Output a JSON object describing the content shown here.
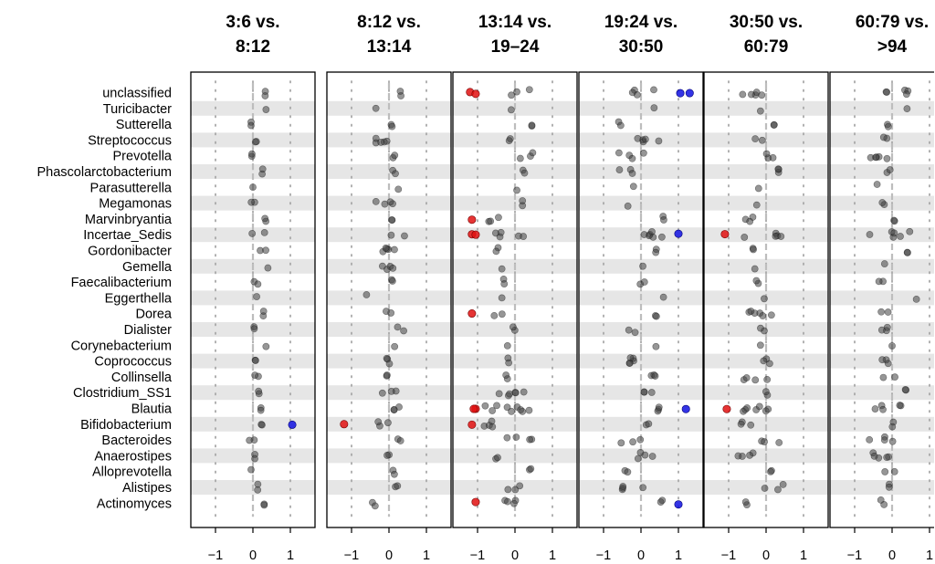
{
  "chart_data": {
    "type": "scatter",
    "genera": [
      "unclassified",
      "Turicibacter",
      "Sutterella",
      "Streptococcus",
      "Prevotella",
      "Phascolarctobacterium",
      "Parasutterella",
      "Megamonas",
      "Marvinbryantia",
      "Incertae_Sedis",
      "Gordonibacter",
      "Gemella",
      "Faecalibacterium",
      "Eggerthella",
      "Dorea",
      "Dialister",
      "Corynebacterium",
      "Coprococcus",
      "Collinsella",
      "Clostridium_SS1",
      "Blautia",
      "Bifidobacterium",
      "Bacteroides",
      "Anaerostipes",
      "Alloprevotella",
      "Alistipes",
      "Actinomyces"
    ],
    "xlim": [
      -1.5,
      1.5
    ],
    "xticks": [
      -1,
      0,
      1
    ],
    "xtick_labels": [
      "−1",
      "0",
      "1"
    ],
    "grid": "dotted vertical lines at -1, 0, 1; alternating grey row bands",
    "colors": {
      "neutral": "#404040",
      "negative": "#e01010",
      "positive": "#1010e0",
      "band": "#e6e6e6",
      "zero_line": "#bdbdbd"
    },
    "panels": [
      {
        "title_line1": "3:6 vs.",
        "title_line2": "8:12",
        "points": {
          "unclassified": [
            0.2,
            0.4,
            0.07
          ],
          "Turicibacter": [
            0.35,
            0.35,
            0
          ],
          "Sutterella": [
            -0.05,
            -0.05,
            0.05
          ],
          "Streptococcus": [
            0.05,
            0.1,
            0.05
          ],
          "Prevotella": [
            -0.05,
            0.05,
            0.08
          ],
          "Phascolarctobacterium": [
            0.05,
            0.3,
            0.1
          ],
          "Parasutterella": [
            0.0,
            0.0,
            0
          ],
          "Megamonas": [
            -0.1,
            0.1,
            0.1
          ],
          "Marvinbryantia": [
            0.3,
            0.35,
            0.05
          ],
          "Incertae_Sedis": [
            -0.1,
            0.4,
            0.07
          ],
          "Gordonibacter": [
            0.1,
            0.35,
            0.1
          ],
          "Gemella": [
            0.4,
            0.4,
            0
          ],
          "Faecalibacterium": [
            0.0,
            0.15,
            0.1
          ],
          "Eggerthella": [
            0.1,
            0.1,
            0
          ],
          "Dorea": [
            0.25,
            0.3,
            0.08
          ],
          "Dialister": [
            0.0,
            0.05,
            0.05
          ],
          "Corynebacterium": [
            0.35,
            0.35,
            0
          ],
          "Coprococcus": [
            0.05,
            0.1,
            0.1
          ],
          "Collinsella": [
            0.05,
            0.15,
            0.08
          ],
          "Clostridium_SS1": [
            0.15,
            0.25,
            0.1
          ],
          "Blautia": [
            0.2,
            0.25,
            0.1
          ],
          "Bifidobacterium": [
            0.2,
            0.25,
            0.12
          ],
          "Bacteroides": [
            -0.1,
            0.2,
            0.08
          ],
          "Anaerostipes": [
            0.05,
            0.05,
            0.05
          ],
          "Alloprevotella": [
            -0.05,
            -0.05,
            0
          ],
          "Alistipes": [
            0.1,
            0.15,
            0.07
          ],
          "Actinomyces": [
            0.3,
            0.3,
            0.05
          ]
        },
        "red": {},
        "blue": {
          "Bifidobacterium": [
            1.05
          ]
        }
      },
      {
        "title_line1": "8:12 vs.",
        "title_line2": "13:14",
        "points": {
          "unclassified": [
            0.2,
            0.35,
            0.08
          ],
          "Turicibacter": [
            -0.35,
            -0.35,
            0
          ],
          "Sutterella": [
            0.05,
            0.1,
            0.05
          ],
          "Streptococcus": [
            -0.4,
            0.2,
            0.12
          ],
          "Prevotella": [
            0.05,
            0.3,
            0.08
          ],
          "Phascolarctobacterium": [
            0.1,
            0.2,
            0.06
          ],
          "Parasutterella": [
            0.25,
            0.25,
            0
          ],
          "Megamonas": [
            -0.35,
            0.1,
            0.12
          ],
          "Marvinbryantia": [
            0.05,
            0.1,
            0.05
          ],
          "Incertae_Sedis": [
            0.0,
            0.45,
            0.07
          ],
          "Gordonibacter": [
            -0.3,
            0.35,
            0.12
          ],
          "Gemella": [
            -0.35,
            0.2,
            0.1
          ],
          "Faecalibacterium": [
            0.05,
            0.1,
            0.08
          ],
          "Eggerthella": [
            -0.6,
            -0.6,
            0
          ],
          "Dorea": [
            -0.1,
            0.15,
            0.08
          ],
          "Dialister": [
            0.2,
            0.45,
            0.1
          ],
          "Corynebacterium": [
            0.15,
            0.15,
            0
          ],
          "Coprococcus": [
            -0.2,
            0.25,
            0.1
          ],
          "Collinsella": [
            -0.15,
            -0.05,
            0.05
          ],
          "Clostridium_SS1": [
            -0.3,
            0.2,
            0.1
          ],
          "Blautia": [
            -0.1,
            0.35,
            0.1
          ],
          "Bifidobacterium": [
            -0.3,
            0.1,
            0.1
          ],
          "Bacteroides": [
            0.1,
            0.4,
            0.07
          ],
          "Anaerostipes": [
            -0.2,
            0.15,
            0.1
          ],
          "Alloprevotella": [
            0.05,
            0.15,
            0.06
          ],
          "Alistipes": [
            0.05,
            0.25,
            0.07
          ],
          "Actinomyces": [
            -0.45,
            -0.25,
            0.1
          ]
        },
        "red": {
          "Bifidobacterium": [
            -1.2
          ]
        },
        "blue": {}
      },
      {
        "title_line1": "13:14 vs.",
        "title_line2": "19–24",
        "points": {
          "unclassified": [
            -0.2,
            0.4,
            0.08
          ],
          "Turicibacter": [
            -0.1,
            -0.1,
            0
          ],
          "Sutterella": [
            0.45,
            0.45,
            0.05
          ],
          "Streptococcus": [
            -0.35,
            -0.1,
            0.1
          ],
          "Prevotella": [
            0.1,
            0.6,
            0.08
          ],
          "Phascolarctobacterium": [
            0.05,
            0.3,
            0.1
          ],
          "Parasutterella": [
            0.05,
            0.05,
            0
          ],
          "Megamonas": [
            0.2,
            0.2,
            0.05
          ],
          "Marvinbryantia": [
            -0.8,
            -0.35,
            0.1
          ],
          "Incertae_Sedis": [
            -0.6,
            0.4,
            0.08
          ],
          "Gordonibacter": [
            -0.6,
            -0.3,
            0.1
          ],
          "Gemella": [
            -0.35,
            -0.35,
            0
          ],
          "Faecalibacterium": [
            -0.35,
            -0.1,
            0.06
          ],
          "Eggerthella": [
            -0.35,
            -0.35,
            0
          ],
          "Dorea": [
            -0.6,
            -0.2,
            0.08
          ],
          "Dialister": [
            -0.1,
            0.05,
            0.05
          ],
          "Corynebacterium": [
            -0.2,
            -0.2,
            0
          ],
          "Coprococcus": [
            -0.25,
            -0.1,
            0.08
          ],
          "Collinsella": [
            -0.4,
            -0.2,
            0.1
          ],
          "Clostridium_SS1": [
            -0.6,
            0.3,
            0.1
          ],
          "Blautia": [
            -0.8,
            0.4,
            0.12
          ],
          "Bifidobacterium": [
            -0.9,
            -0.3,
            0.1
          ],
          "Bacteroides": [
            -0.3,
            0.45,
            0.08
          ],
          "Anaerostipes": [
            -0.7,
            -0.4,
            0.08
          ],
          "Alloprevotella": [
            0.35,
            0.45,
            0.05
          ],
          "Alistipes": [
            -0.2,
            0.3,
            0.08
          ],
          "Actinomyces": [
            -0.35,
            0.2,
            0.1
          ]
        },
        "red": {
          "unclassified": [
            -1.2,
            -1.05
          ],
          "Marvinbryantia": [
            -1.15
          ],
          "Incertae_Sedis": [
            -1.15,
            -1.05
          ],
          "Dorea": [
            -1.15
          ],
          "Blautia": [
            -1.05,
            -1.1
          ],
          "Bifidobacterium": [
            -1.15
          ],
          "Actinomyces": [
            -1.05
          ]
        },
        "blue": {}
      },
      {
        "title_line1": "19:24 vs.",
        "title_line2": "30:50",
        "points": {
          "unclassified": [
            -0.3,
            0.4,
            0.08
          ],
          "Turicibacter": [
            0.35,
            0.35,
            0
          ],
          "Sutterella": [
            -0.6,
            -0.3,
            0.1
          ],
          "Streptococcus": [
            -0.1,
            0.6,
            0.1
          ],
          "Prevotella": [
            -0.65,
            0.15,
            0.08
          ],
          "Phascolarctobacterium": [
            -0.6,
            -0.2,
            0.1
          ],
          "Parasutterella": [
            -0.2,
            -0.2,
            0
          ],
          "Megamonas": [
            -0.35,
            -0.35,
            0
          ],
          "Marvinbryantia": [
            0.5,
            0.8,
            0.06
          ],
          "Incertae_Sedis": [
            -0.35,
            0.85,
            0.08
          ],
          "Gordonibacter": [
            0.3,
            0.5,
            0.1
          ],
          "Gemella": [
            0.05,
            0.05,
            0
          ],
          "Faecalibacterium": [
            -0.1,
            0.1,
            0.06
          ],
          "Eggerthella": [
            0.6,
            0.6,
            0
          ],
          "Dorea": [
            0.3,
            0.5,
            0.06
          ],
          "Dialister": [
            -0.35,
            -0.15,
            0.06
          ],
          "Corynebacterium": [
            0.4,
            0.4,
            0
          ],
          "Coprococcus": [
            -0.4,
            0.3,
            0.1
          ],
          "Collinsella": [
            -0.1,
            0.4,
            0.1
          ],
          "Clostridium_SS1": [
            0.0,
            0.4,
            0.1
          ],
          "Blautia": [
            0.1,
            0.6,
            0.08
          ],
          "Bifidobacterium": [
            0.1,
            0.5,
            0.08
          ],
          "Bacteroides": [
            -0.55,
            0.1,
            0.07
          ],
          "Anaerostipes": [
            -0.1,
            0.45,
            0.1
          ],
          "Alloprevotella": [
            -0.45,
            -0.25,
            0.06
          ],
          "Alistipes": [
            -0.5,
            0.2,
            0.08
          ],
          "Actinomyces": [
            0.5,
            0.7,
            0.06
          ]
        },
        "red": {},
        "blue": {
          "unclassified": [
            1.05,
            1.3
          ],
          "Incertae_Sedis": [
            1.0
          ],
          "Blautia": [
            1.2
          ],
          "Actinomyces": [
            1.0
          ]
        }
      },
      {
        "title_line1": "30:50 vs.",
        "title_line2": "60:79",
        "points": {
          "unclassified": [
            -0.7,
            0.3,
            0.08
          ],
          "Turicibacter": [
            -0.15,
            -0.15,
            0
          ],
          "Sutterella": [
            0.2,
            0.25,
            0.05
          ],
          "Streptococcus": [
            -0.3,
            0.1,
            0.08
          ],
          "Prevotella": [
            -0.1,
            0.4,
            0.08
          ],
          "Phascolarctobacterium": [
            0.0,
            0.4,
            0.1
          ],
          "Parasutterella": [
            -0.2,
            -0.2,
            0
          ],
          "Megamonas": [
            -0.25,
            -0.25,
            0
          ],
          "Marvinbryantia": [
            -0.6,
            -0.2,
            0.1
          ],
          "Incertae_Sedis": [
            -0.6,
            0.4,
            0.08
          ],
          "Gordonibacter": [
            -0.4,
            -0.1,
            0.08
          ],
          "Gemella": [
            -0.3,
            -0.3,
            0
          ],
          "Faecalibacterium": [
            -0.35,
            0.05,
            0.08
          ],
          "Eggerthella": [
            -0.05,
            -0.05,
            0
          ],
          "Dorea": [
            -0.7,
            0.2,
            0.1
          ],
          "Dialister": [
            -0.15,
            0.05,
            0.06
          ],
          "Corynebacterium": [
            -0.15,
            -0.15,
            0
          ],
          "Coprococcus": [
            -0.4,
            0.1,
            0.1
          ],
          "Collinsella": [
            -0.6,
            0.05,
            0.1
          ],
          "Clostridium_SS1": [
            -0.2,
            0.1,
            0.08
          ],
          "Blautia": [
            -0.9,
            0.1,
            0.1
          ],
          "Bifidobacterium": [
            -0.9,
            -0.4,
            0.08
          ],
          "Bacteroides": [
            -0.2,
            0.4,
            0.08
          ],
          "Anaerostipes": [
            -0.8,
            -0.2,
            0.1
          ],
          "Alloprevotella": [
            0.1,
            0.2,
            0.05
          ],
          "Alistipes": [
            -0.1,
            0.5,
            0.08
          ],
          "Actinomyces": [
            -0.7,
            -0.5,
            0.08
          ]
        },
        "red": {
          "Incertae_Sedis": [
            -1.1
          ],
          "Blautia": [
            -1.05
          ]
        },
        "blue": {}
      },
      {
        "title_line1": "60:79 vs.",
        "title_line2": ">94",
        "points": {
          "unclassified": [
            -0.5,
            0.5,
            0.08
          ],
          "Turicibacter": [
            0.4,
            0.4,
            0
          ],
          "Sutterella": [
            -0.2,
            -0.1,
            0.05
          ],
          "Streptococcus": [
            -0.25,
            0.05,
            0.08
          ],
          "Prevotella": [
            -0.7,
            0.25,
            0.08
          ],
          "Phascolarctobacterium": [
            -0.2,
            0.1,
            0.08
          ],
          "Parasutterella": [
            -0.4,
            -0.4,
            0
          ],
          "Megamonas": [
            -0.5,
            -0.2,
            0.08
          ],
          "Marvinbryantia": [
            -0.3,
            0.1,
            0.08
          ],
          "Incertae_Sedis": [
            -0.6,
            0.6,
            0.08
          ],
          "Gordonibacter": [
            0.4,
            0.45,
            0.05
          ],
          "Gemella": [
            -0.2,
            -0.2,
            0
          ],
          "Faecalibacterium": [
            -0.4,
            -0.1,
            0.08
          ],
          "Eggerthella": [
            0.65,
            0.65,
            0
          ],
          "Dorea": [
            -0.3,
            0.1,
            0.08
          ],
          "Dialister": [
            -0.4,
            0.1,
            0.08
          ],
          "Corynebacterium": [
            0.0,
            0.0,
            0
          ],
          "Coprococcus": [
            -0.4,
            0.1,
            0.1
          ],
          "Collinsella": [
            -0.3,
            0.1,
            0.08
          ],
          "Clostridium_SS1": [
            0.2,
            0.5,
            0.08
          ],
          "Blautia": [
            -0.5,
            0.3,
            0.1
          ],
          "Bifidobacterium": [
            -0.2,
            0.1,
            0.08
          ],
          "Bacteroides": [
            -0.7,
            0.15,
            0.08
          ],
          "Anaerostipes": [
            -0.6,
            0.1,
            0.1
          ],
          "Alloprevotella": [
            -0.2,
            0.1,
            0.06
          ],
          "Alistipes": [
            -0.1,
            0.1,
            0.07
          ],
          "Actinomyces": [
            -0.3,
            0.1,
            0.08
          ]
        },
        "red": {},
        "blue": {}
      }
    ]
  }
}
